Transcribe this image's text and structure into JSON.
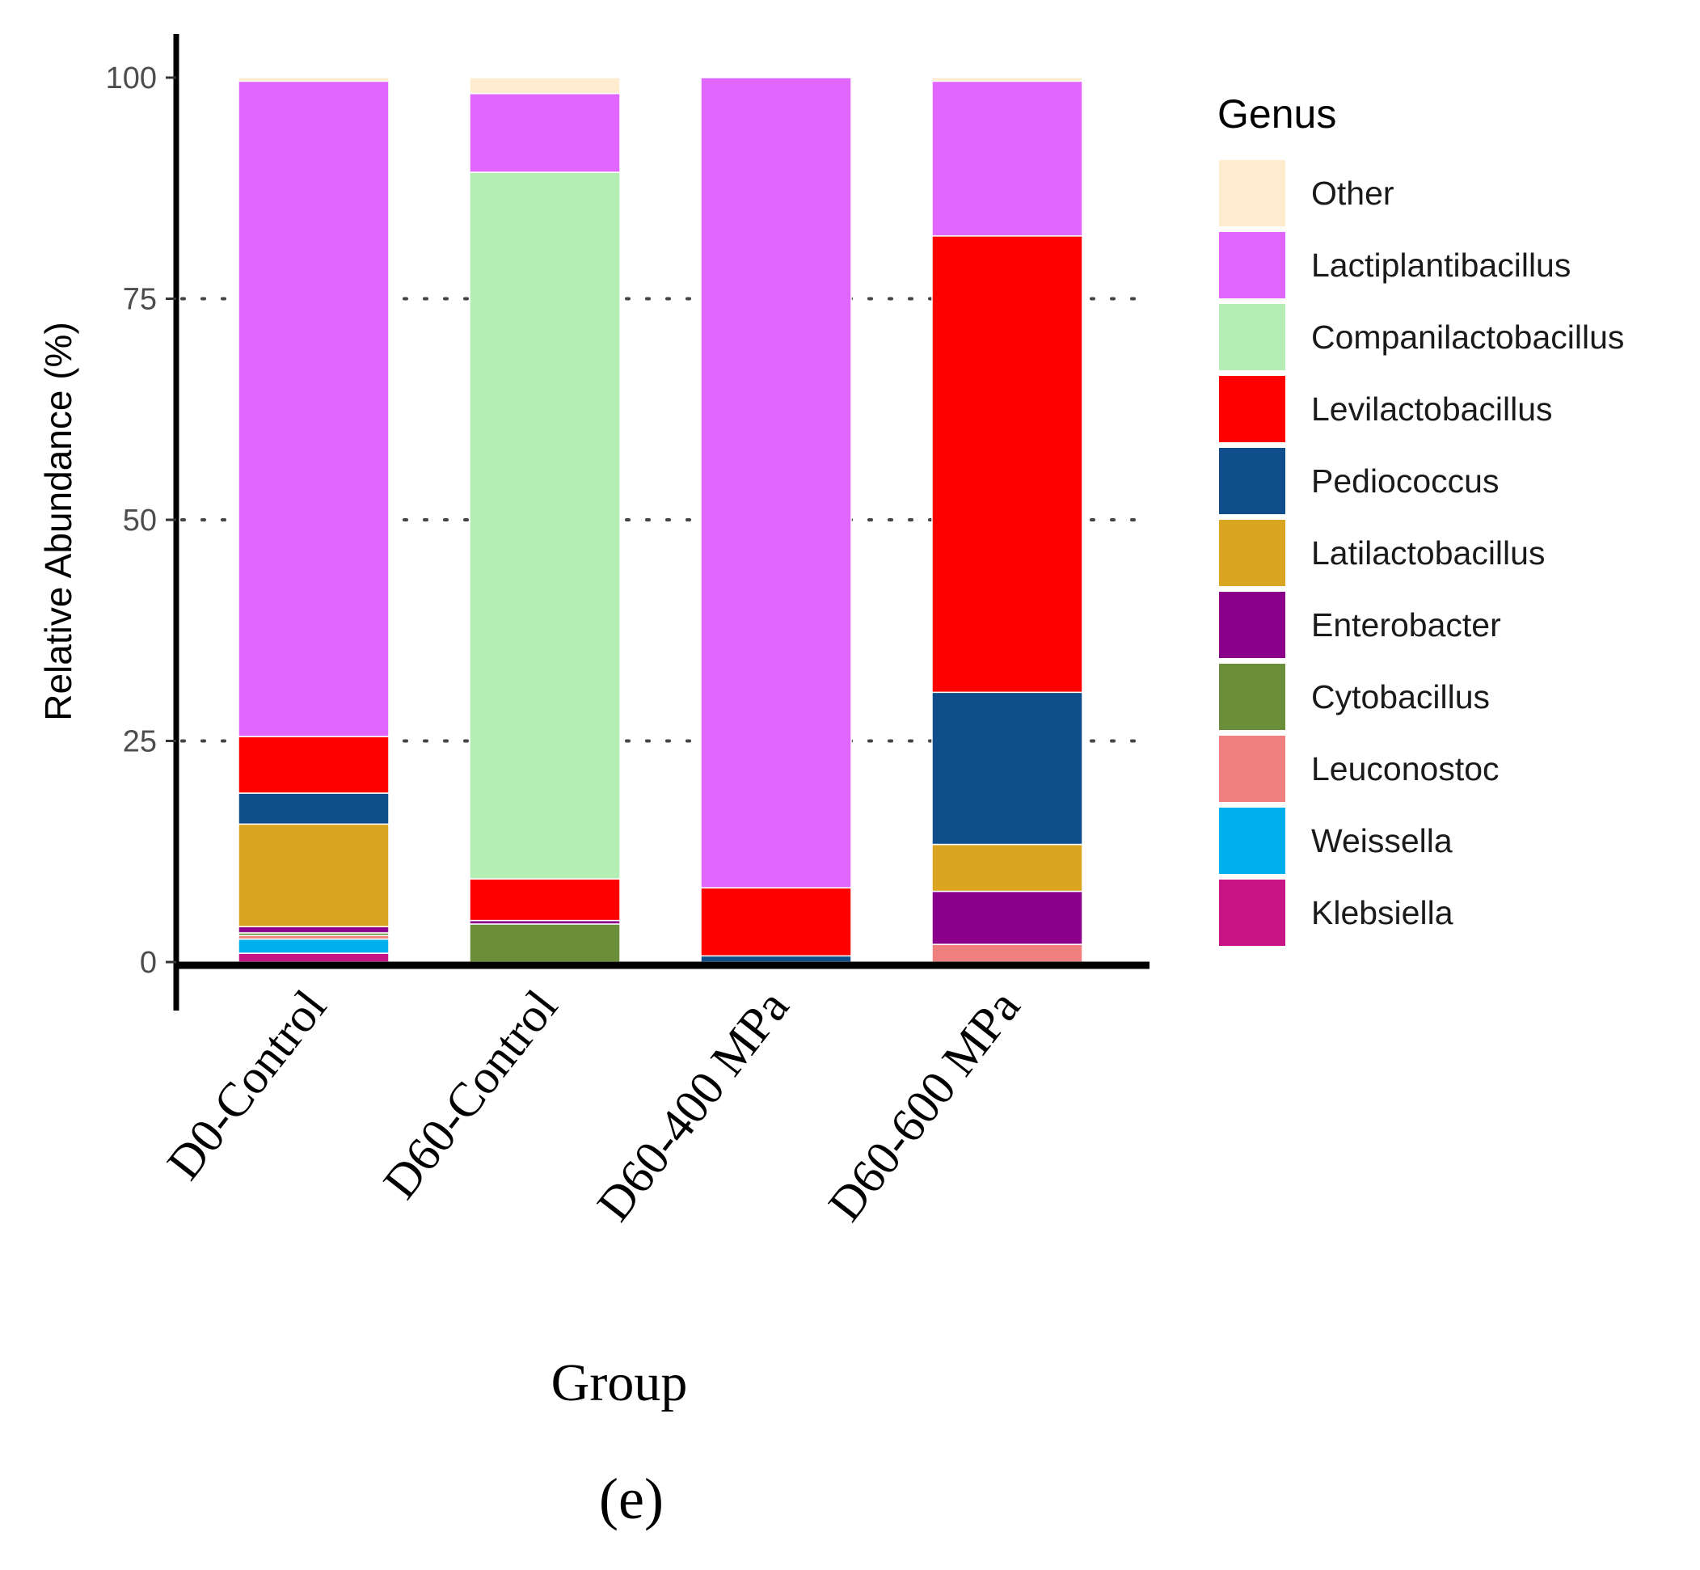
{
  "chart_data": {
    "type": "bar",
    "stacked": true,
    "title": "",
    "panel_label": "(e)",
    "xlabel": "Group",
    "ylabel": "Relative Abundance (%)",
    "ylim": [
      0,
      100
    ],
    "yticks": [
      0,
      25,
      50,
      75,
      100
    ],
    "grid": "horizontal dotted",
    "legend_title": "Genus",
    "legend_position": "right",
    "categories": [
      "D0-Control",
      "D60-Control",
      "D60-400 MPa",
      "D60-600 MPa"
    ],
    "series": [
      {
        "name": "Klebsiella",
        "color": "#c71585",
        "values": [
          1.0,
          0.0,
          0.0,
          0.0
        ]
      },
      {
        "name": "Weissella",
        "color": "#00b0ee",
        "values": [
          1.6,
          0.0,
          0.0,
          0.0
        ]
      },
      {
        "name": "Leuconostoc",
        "color": "#f08080",
        "values": [
          0.4,
          0.0,
          0.0,
          2.0
        ]
      },
      {
        "name": "Cytobacillus",
        "color": "#6b8e3a",
        "values": [
          0.3,
          4.3,
          0.0,
          0.0
        ]
      },
      {
        "name": "Enterobacter",
        "color": "#8b008b",
        "values": [
          0.7,
          0.4,
          0.0,
          6.0
        ]
      },
      {
        "name": "Latilactobacillus",
        "color": "#daa520",
        "values": [
          11.6,
          0.0,
          0.0,
          5.3
        ]
      },
      {
        "name": "Pediococcus",
        "color": "#104e8b",
        "values": [
          3.5,
          0.0,
          0.7,
          17.2
        ]
      },
      {
        "name": "Levilactobacillus",
        "color": "#ff0000",
        "values": [
          6.4,
          4.7,
          7.7,
          51.6
        ]
      },
      {
        "name": "Companilactobacillus",
        "color": "#b4eeb4",
        "values": [
          0.0,
          79.9,
          0.0,
          0.0
        ]
      },
      {
        "name": "Lactiplantibacillus",
        "color": "#e066ff",
        "values": [
          74.1,
          8.9,
          91.6,
          17.5
        ]
      },
      {
        "name": "Other",
        "color": "#ffebcd",
        "values": [
          0.4,
          1.8,
          0.0,
          0.4
        ]
      }
    ]
  }
}
